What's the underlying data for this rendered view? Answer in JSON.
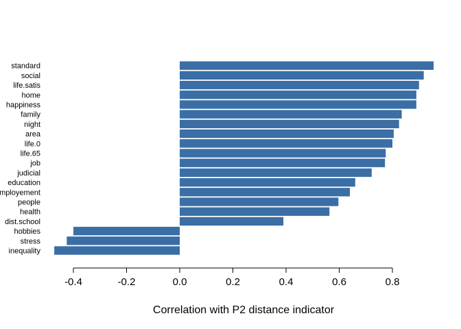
{
  "chart_data": {
    "type": "bar",
    "orientation": "horizontal",
    "categories": [
      "standard",
      "social",
      "life.satis",
      "home",
      "happiness",
      "family",
      "night",
      "area",
      "life.0",
      "life.65",
      "job",
      "judicial",
      "education",
      "employement",
      "people",
      "health",
      "dist.school",
      "hobbies",
      "stress",
      "inequality"
    ],
    "values": [
      0.955,
      0.918,
      0.9,
      0.89,
      0.89,
      0.835,
      0.825,
      0.805,
      0.8,
      0.775,
      0.772,
      0.722,
      0.66,
      0.64,
      0.597,
      0.563,
      0.39,
      -0.4,
      -0.425,
      -0.472
    ],
    "title": "",
    "xlabel": "Correlation with P2 distance indicator",
    "ylabel": "",
    "xticks": [
      "-0.4",
      "-0.2",
      "0.0",
      "0.2",
      "0.4",
      "0.6",
      "0.8"
    ],
    "xlim": [
      -0.5,
      0.97
    ],
    "bar_color": "#3a6ea5",
    "grid": false,
    "legend": "none"
  }
}
